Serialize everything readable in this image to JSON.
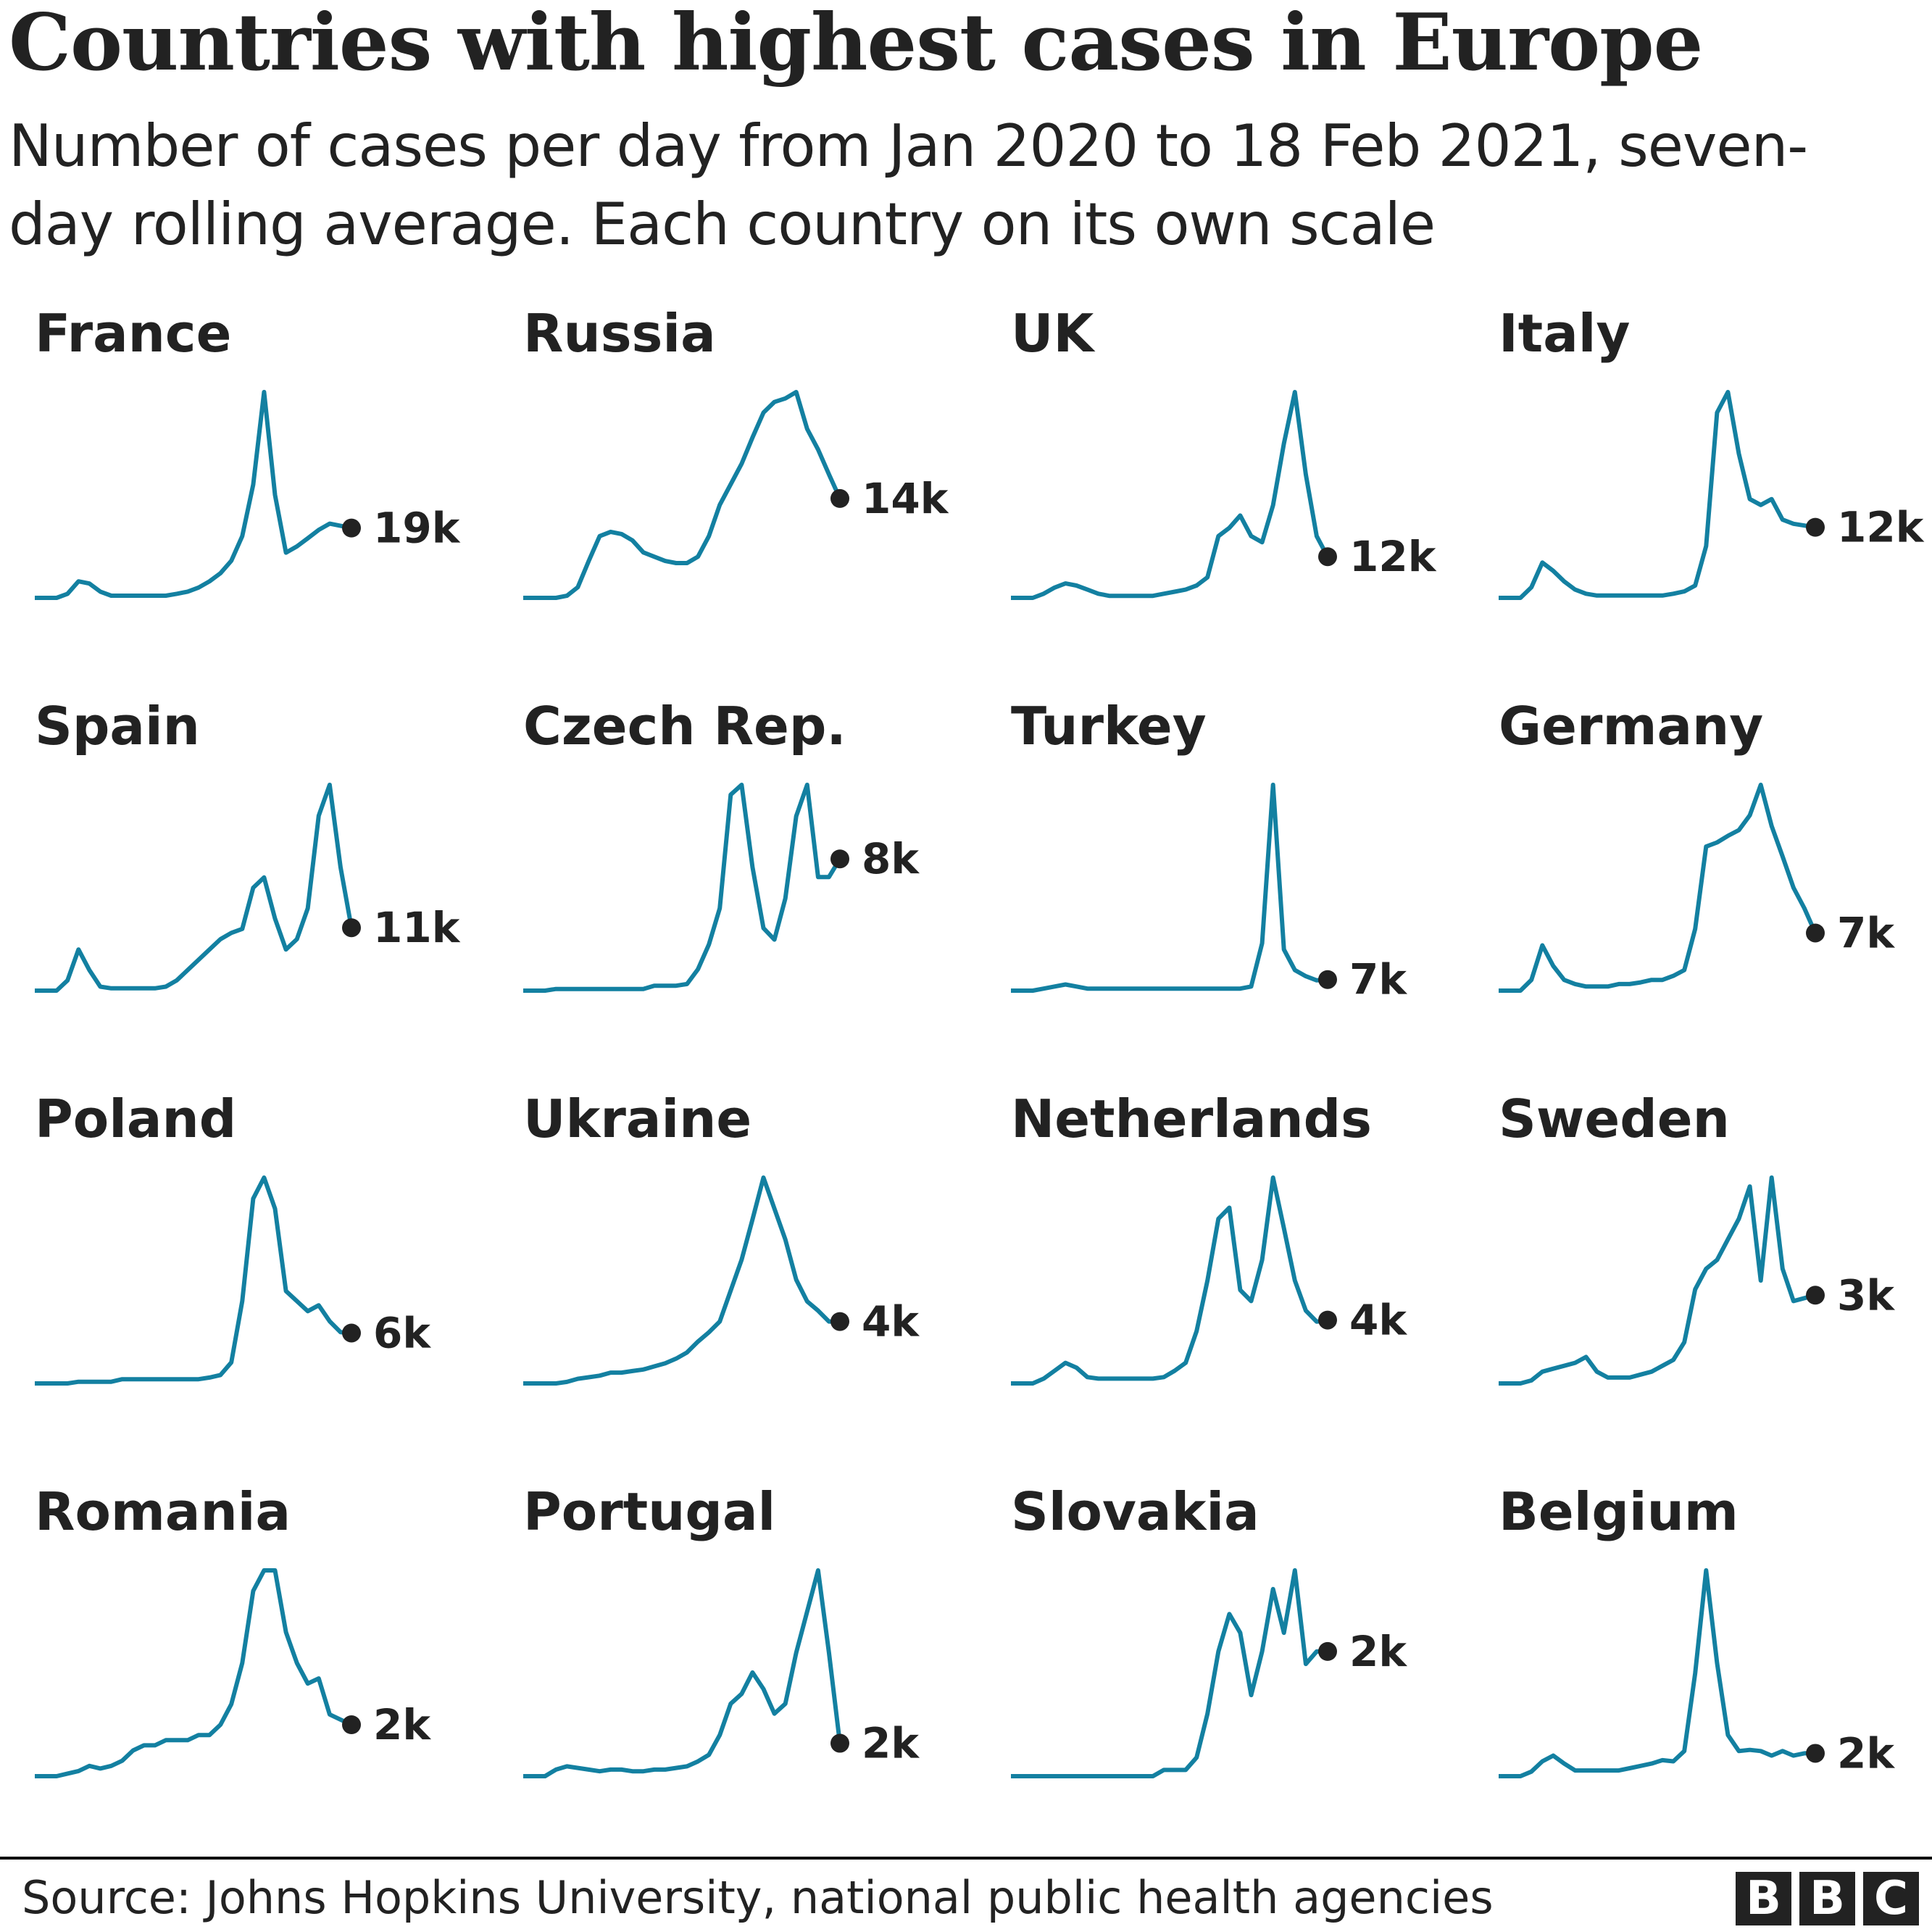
{
  "title": "Countries with highest cases in Europe",
  "subtitle": "Number of cases per day from Jan 2020 to 18 Feb 2021, seven-day rolling average. Each country on its own scale",
  "source": "Source: Johns Hopkins University, national public health agencies",
  "logo": [
    "B",
    "B",
    "C"
  ],
  "colors": {
    "line": "#1380A1",
    "dot": "#222222",
    "text": "#222222"
  },
  "chart_data": {
    "type": "line",
    "layout": "small-multiples 4x4",
    "period": {
      "start": "Jan 2020",
      "end": "18 Feb 2021"
    },
    "value_unit": "thousand cases per day",
    "independent_scales": true,
    "grid": false,
    "series": [
      {
        "name": "France",
        "end_label": "19k",
        "values": [
          0,
          0,
          0,
          1.1,
          4.5,
          3.9,
          1.7,
          0.6,
          0.6,
          0.6,
          0.6,
          0.6,
          0.6,
          1.1,
          1.7,
          2.8,
          4.5,
          6.7,
          10.1,
          16.8,
          30.8,
          56,
          28,
          12.3,
          14,
          16.2,
          18.5,
          20.2,
          19.6,
          19
        ]
      },
      {
        "name": "Russia",
        "end_label": "14k",
        "values": [
          0,
          0,
          0,
          0,
          0.3,
          1.5,
          5.2,
          8.7,
          9.3,
          9,
          8.1,
          6.4,
          5.8,
          5.2,
          4.9,
          4.9,
          5.8,
          8.7,
          13.1,
          16,
          18.9,
          22.6,
          26.1,
          27.6,
          28.1,
          29,
          23.8,
          20.9,
          17.4,
          14
        ]
      },
      {
        "name": "UK",
        "end_label": "12k",
        "values": [
          0,
          0,
          0,
          1.2,
          3,
          4.2,
          3.6,
          2.4,
          1.2,
          0.6,
          0.6,
          0.6,
          0.6,
          0.6,
          1.2,
          1.8,
          2.4,
          3.6,
          6,
          18,
          20.4,
          24,
          18,
          16.2,
          27,
          45,
          60,
          36,
          18,
          12
        ]
      },
      {
        "name": "Italy",
        "end_label": "12k",
        "values": [
          0,
          0,
          0,
          1.8,
          6,
          4.6,
          2.8,
          1.4,
          0.7,
          0.4,
          0.4,
          0.4,
          0.4,
          0.4,
          0.4,
          0.4,
          0.7,
          1.1,
          2.1,
          8.8,
          31.5,
          35,
          24.5,
          16.8,
          15.8,
          16.8,
          13.3,
          12.6,
          12.3,
          12
        ]
      },
      {
        "name": "Spain",
        "end_label": "11k",
        "values": [
          0,
          0,
          0,
          1.8,
          7.2,
          3.6,
          0.7,
          0.4,
          0.4,
          0.4,
          0.4,
          0.4,
          0.7,
          1.8,
          3.6,
          5.4,
          7.2,
          9,
          10.1,
          10.8,
          18,
          19.8,
          12.6,
          7.2,
          9,
          14.4,
          30.6,
          36,
          21.6,
          11
        ]
      },
      {
        "name": "Czech Rep.",
        "end_label": "8k",
        "values": [
          0,
          0,
          0,
          0.1,
          0.1,
          0.1,
          0.1,
          0.1,
          0.1,
          0.1,
          0.1,
          0.1,
          0.3,
          0.3,
          0.3,
          0.4,
          1.3,
          2.8,
          5,
          11.9,
          12.5,
          7.5,
          3.8,
          3.1,
          5.6,
          10.6,
          12.5,
          6.9,
          6.9,
          8
        ]
      },
      {
        "name": "Turkey",
        "end_label": "7k",
        "values": [
          0,
          0,
          0,
          1.3,
          2.6,
          3.9,
          2.6,
          1.3,
          1.3,
          1.3,
          1.3,
          1.3,
          1.3,
          1.3,
          1.3,
          1.3,
          1.3,
          1.3,
          1.3,
          1.3,
          1.3,
          1.3,
          2.6,
          29.9,
          130,
          26,
          13,
          9.1,
          6.5,
          7
        ]
      },
      {
        "name": "Germany",
        "end_label": "7k",
        "values": [
          0,
          0,
          0,
          1.3,
          5.5,
          3,
          1.3,
          0.8,
          0.5,
          0.5,
          0.5,
          0.8,
          0.8,
          1,
          1.3,
          1.3,
          1.8,
          2.5,
          7.5,
          17.5,
          18,
          18.8,
          19.5,
          21.3,
          25,
          20,
          16.3,
          12.5,
          10,
          7
        ]
      },
      {
        "name": "Poland",
        "end_label": "6k",
        "values": [
          0,
          0,
          0,
          0,
          0.2,
          0.2,
          0.2,
          0.2,
          0.5,
          0.5,
          0.5,
          0.5,
          0.5,
          0.5,
          0.5,
          0.5,
          0.7,
          1,
          2.5,
          9.8,
          22,
          24.5,
          20.8,
          11,
          9.8,
          8.6,
          9.3,
          7.4,
          6.1,
          6
        ]
      },
      {
        "name": "Ukraine",
        "end_label": "4k",
        "values": [
          0,
          0,
          0,
          0,
          0.1,
          0.3,
          0.4,
          0.5,
          0.7,
          0.7,
          0.8,
          0.9,
          1.1,
          1.3,
          1.6,
          2,
          2.7,
          3.3,
          4,
          6,
          8,
          10.6,
          13.3,
          11.3,
          9.3,
          6.7,
          5.3,
          4.7,
          4,
          4
        ]
      },
      {
        "name": "Netherlands",
        "end_label": "4k",
        "values": [
          0,
          0,
          0,
          0.3,
          0.8,
          1.3,
          1,
          0.4,
          0.3,
          0.3,
          0.3,
          0.3,
          0.3,
          0.3,
          0.4,
          0.8,
          1.3,
          3.3,
          6.5,
          10.4,
          11.1,
          5.9,
          5.2,
          7.8,
          13,
          9.8,
          6.5,
          4.6,
          3.9,
          4
        ]
      },
      {
        "name": "Sweden",
        "end_label": "3k",
        "values": [
          0,
          0,
          0,
          0.1,
          0.4,
          0.5,
          0.6,
          0.7,
          0.9,
          0.4,
          0.2,
          0.2,
          0.2,
          0.3,
          0.4,
          0.6,
          0.8,
          1.4,
          3.2,
          3.9,
          4.2,
          4.9,
          5.6,
          6.7,
          3.5,
          7,
          3.9,
          2.8,
          2.9,
          3
        ]
      },
      {
        "name": "Romania",
        "end_label": "2k",
        "values": [
          0,
          0,
          0,
          0.1,
          0.2,
          0.4,
          0.3,
          0.4,
          0.6,
          1,
          1.2,
          1.2,
          1.4,
          1.4,
          1.4,
          1.6,
          1.6,
          2,
          2.8,
          4.4,
          7.2,
          8,
          8,
          5.6,
          4.4,
          3.6,
          3.8,
          2.4,
          2.2,
          2
        ]
      },
      {
        "name": "Portugal",
        "end_label": "2k",
        "values": [
          0,
          0,
          0,
          0.4,
          0.6,
          0.5,
          0.4,
          0.3,
          0.4,
          0.4,
          0.3,
          0.3,
          0.4,
          0.4,
          0.5,
          0.6,
          0.9,
          1.3,
          2.5,
          4.4,
          5,
          6.3,
          5.3,
          3.8,
          4.4,
          7.5,
          10,
          12.5,
          7.5,
          2
        ]
      },
      {
        "name": "Slovakia",
        "end_label": "2k",
        "values": [
          0,
          0,
          0,
          0,
          0,
          0,
          0,
          0,
          0,
          0,
          0,
          0,
          0,
          0,
          0.1,
          0.1,
          0.1,
          0.3,
          1,
          2,
          2.6,
          2.3,
          1.3,
          2,
          3,
          2.3,
          3.3,
          1.8,
          2,
          2
        ]
      },
      {
        "name": "Belgium",
        "end_label": "2k",
        "values": [
          0,
          0,
          0,
          0.4,
          1.3,
          1.8,
          1.1,
          0.5,
          0.5,
          0.5,
          0.5,
          0.5,
          0.7,
          0.9,
          1.1,
          1.4,
          1.3,
          2.2,
          9,
          18,
          9.9,
          3.6,
          2.2,
          2.3,
          2.2,
          1.8,
          2.2,
          1.8,
          2,
          2
        ]
      }
    ]
  }
}
